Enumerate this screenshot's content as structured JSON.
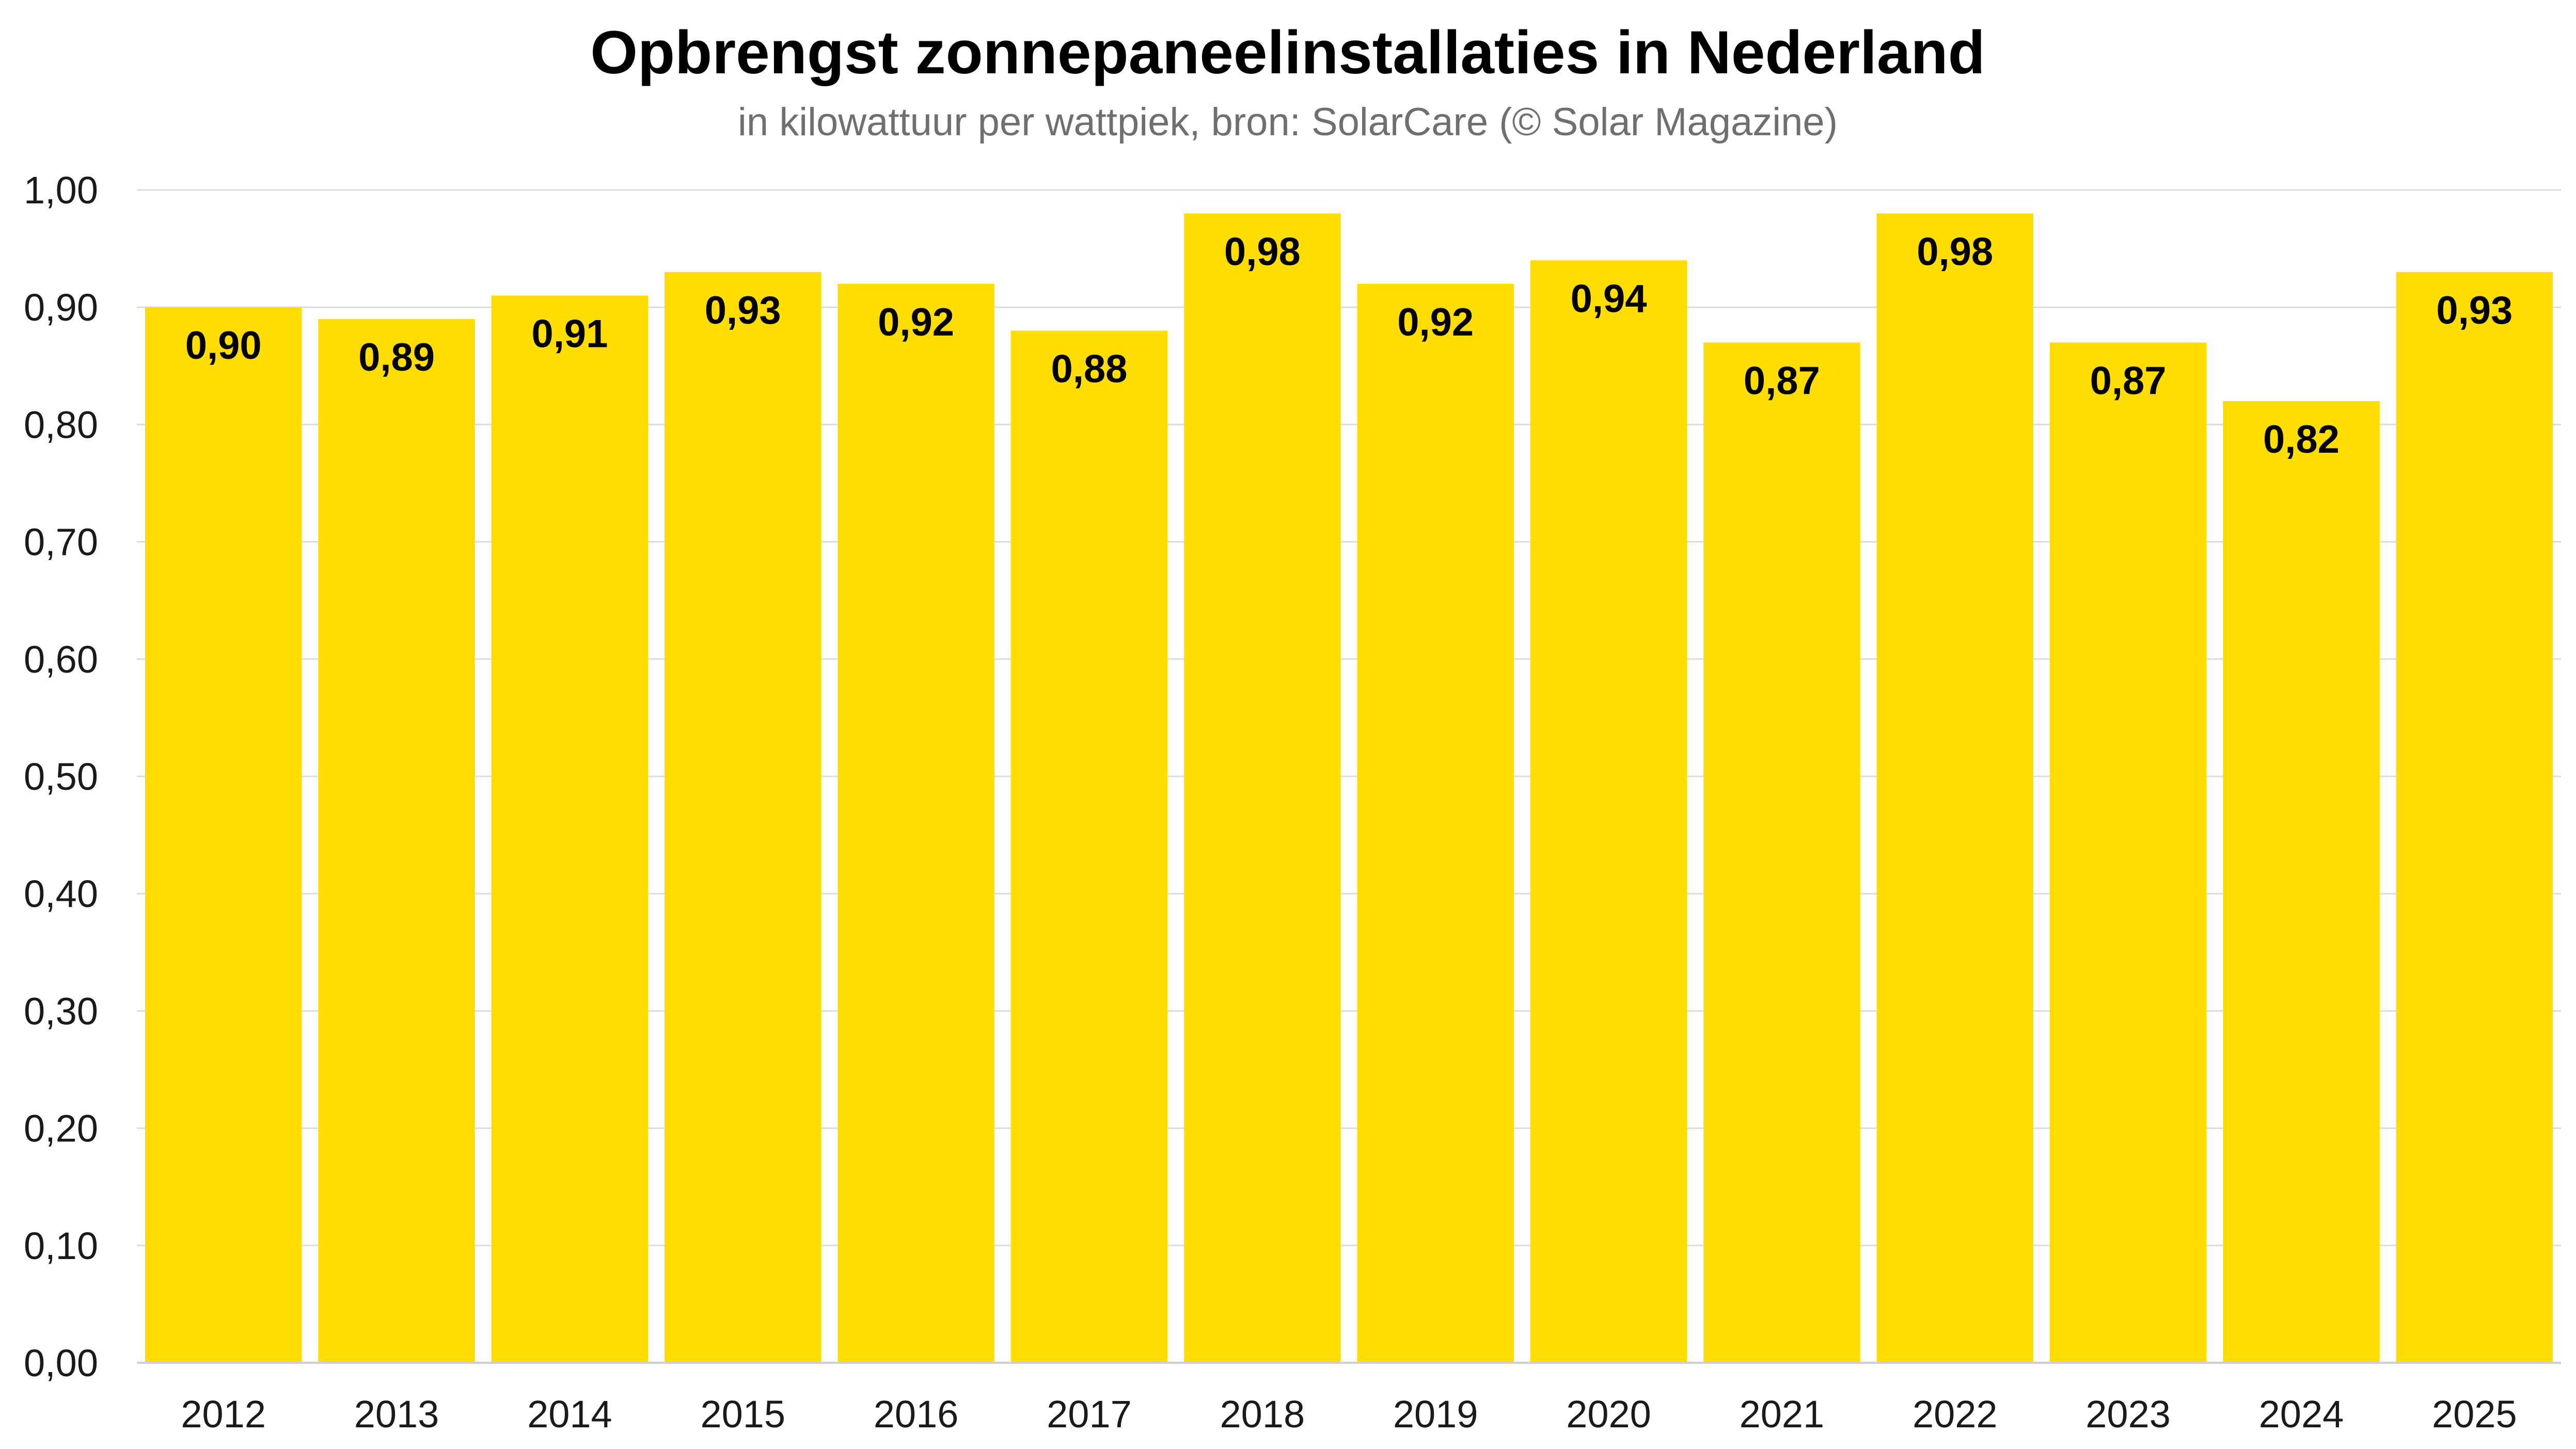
{
  "chart_data": {
    "type": "bar",
    "title": "Opbrengst zonnepaneelinstallaties in Nederland",
    "subtitle": "in kilowattuur per wattpiek, bron: SolarCare (© Solar Magazine)",
    "categories": [
      "2012",
      "2013",
      "2014",
      "2015",
      "2016",
      "2017",
      "2018",
      "2019",
      "2020",
      "2021",
      "2022",
      "2023",
      "2024",
      "2025"
    ],
    "values": [
      0.9,
      0.89,
      0.91,
      0.93,
      0.92,
      0.88,
      0.98,
      0.92,
      0.94,
      0.87,
      0.98,
      0.87,
      0.82,
      0.93
    ],
    "value_labels": [
      "0,90",
      "0,89",
      "0,91",
      "0,93",
      "0,92",
      "0,88",
      "0,98",
      "0,92",
      "0,94",
      "0,87",
      "0,98",
      "0,87",
      "0,82",
      "0,93"
    ],
    "y_ticks": [
      "0,00",
      "0,10",
      "0,20",
      "0,30",
      "0,40",
      "0,50",
      "0,60",
      "0,70",
      "0,80",
      "0,90",
      "1,00"
    ],
    "ylim": [
      0,
      1.0
    ],
    "xlabel": "",
    "ylabel": "",
    "grid": true,
    "bar_color": "#FFDD00"
  }
}
